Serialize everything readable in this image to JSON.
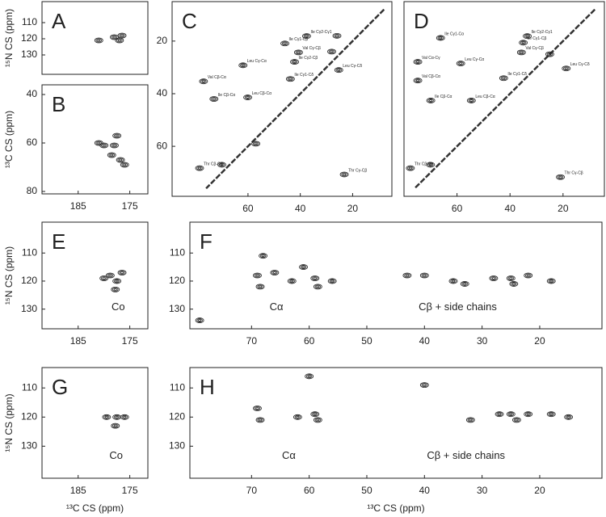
{
  "chart_data": [
    {
      "type": "contour",
      "panel": "A",
      "y_label": "¹⁵N CS (ppm)",
      "xlim": [
        192,
        171.5
      ],
      "ylim": [
        142,
        97
      ],
      "yticks": [
        110,
        120,
        130
      ],
      "peaks": {
        "x": [
          178,
          177,
          181,
          176.5
        ],
        "values": [
          119,
          121,
          121,
          118
        ],
        "labels": [
          null,
          null,
          null,
          null
        ]
      }
    },
    {
      "type": "contour",
      "panel": "B",
      "y_label": "¹³C CS (ppm)",
      "xlim": [
        192,
        171.5
      ],
      "ylim": [
        81,
        36
      ],
      "xticks": [
        185,
        175
      ],
      "yticks": [
        40,
        60,
        80
      ],
      "peaks": {
        "x": [
          177.5,
          178,
          178.5,
          176.8,
          176,
          180,
          181
        ],
        "values": [
          57,
          61,
          65,
          67,
          69,
          61,
          60
        ],
        "labels": [
          null,
          null,
          null,
          null,
          null,
          null,
          null
        ]
      }
    },
    {
      "type": "contour",
      "panel": "C",
      "xlim": [
        89,
        5
      ],
      "ylim": [
        79,
        5
      ],
      "xticks": [
        60,
        40,
        20
      ],
      "yticks": [
        20,
        40,
        60
      ],
      "diagonal": true,
      "peaks": {
        "x": [
          37.6,
          45.9,
          40.7,
          42.2,
          25.3,
          43.8,
          61.9,
          77,
          73,
          60.1,
          78.5,
          23.2,
          70,
          57,
          26,
          28
        ],
        "values": [
          18.1,
          20.9,
          24.3,
          27.9,
          31,
          34.4,
          29.2,
          35.3,
          42,
          41.4,
          68.3,
          70.7,
          67,
          59,
          18,
          24
        ],
        "labels": [
          "Ile Cγ2-Cγ1",
          "Ile Cγ1-Cβ",
          "Val Cγ-Cβ",
          "Ile Cγ2-Cβ",
          "Leu Cγ-Cδ",
          "Ile Cγ1-Cδ",
          "Leu Cγ-Cα",
          "Val Cβ-Cα",
          "Ile Cβ-Cα",
          "Leu Cβ-Cα",
          "Thr Cβ-Cα",
          "Thr Cγ-Cβ",
          null,
          null,
          null,
          null
        ]
      }
    },
    {
      "type": "contour",
      "panel": "D",
      "xlim": [
        80,
        4.4
      ],
      "ylim": [
        79,
        5
      ],
      "xticks": [
        60,
        40,
        20
      ],
      "diagonal": true,
      "peaks": {
        "x": [
          66.2,
          33.5,
          35,
          35.7,
          74.8,
          58.6,
          18.8,
          42.4,
          74.8,
          69.9,
          54.6,
          77.6,
          21,
          70,
          25
        ],
        "values": [
          18.8,
          18.1,
          20.6,
          24.3,
          27.9,
          28.5,
          30.4,
          34.1,
          35,
          42.6,
          42.6,
          68.3,
          71.7,
          67,
          25
        ],
        "labels": [
          "Ile Cγ1-Cα",
          "Ile Cγ2-Cγ1",
          "Ile Cγ1-Cβ",
          "Val Cγ-Cβ",
          "Val Cα-Cγ",
          "Leu Cγ-Cα",
          "Leu Cγ-Cδ",
          "Ile Cγ1-Cδ",
          "Val Cβ-Cα",
          "Ile Cβ-Cα",
          "Leu Cβ-Cα",
          "Thr Cβ-Cα",
          "Thr Cγ-Cβ",
          null,
          null
        ]
      }
    },
    {
      "type": "contour",
      "panel": "E",
      "y_label": "¹⁵N CS (ppm)",
      "annotations": [
        "Co"
      ],
      "xlim": [
        192,
        171.5
      ],
      "ylim": [
        137,
        99
      ],
      "xticks": [
        185,
        175
      ],
      "yticks": [
        110,
        120,
        130
      ],
      "peaks": {
        "x": [
          177.5,
          177.8,
          176.5,
          180,
          178.8
        ],
        "values": [
          120,
          123,
          117,
          119,
          118
        ],
        "labels": [
          null,
          null,
          null,
          null,
          null
        ]
      }
    },
    {
      "type": "contour",
      "panel": "F",
      "annotations": [
        "Cα",
        "Cβ + side chains"
      ],
      "xlim": [
        80.7,
        9.2
      ],
      "ylim": [
        137,
        99
      ],
      "xticks": [
        70,
        60,
        50,
        40,
        30,
        20
      ],
      "yticks": [
        110,
        120,
        130
      ],
      "peaks": {
        "x": [
          69,
          68.5,
          66,
          63,
          59,
          58.5,
          56,
          43,
          40,
          35,
          33,
          28,
          25,
          24.5,
          22,
          18,
          61,
          68,
          79
        ],
        "values": [
          118,
          122,
          117,
          120,
          119,
          122,
          120,
          118,
          118,
          120,
          121,
          119,
          119,
          121,
          118,
          120,
          115,
          111,
          134
        ],
        "labels": [
          null,
          null,
          null,
          null,
          null,
          null,
          null,
          null,
          null,
          null,
          null,
          null,
          null,
          null,
          null,
          null,
          null,
          null,
          null
        ]
      }
    },
    {
      "type": "contour",
      "panel": "G",
      "y_label": "¹⁵N CS (ppm)",
      "x_label": "¹³C CS (ppm)",
      "annotations": [
        "Co"
      ],
      "xlim": [
        192,
        171.5
      ],
      "ylim": [
        141,
        103
      ],
      "xticks": [
        185,
        175
      ],
      "yticks": [
        110,
        120,
        130
      ],
      "peaks": {
        "x": [
          177.5,
          176,
          177.8,
          179.5
        ],
        "values": [
          120,
          120,
          123,
          120
        ],
        "labels": [
          null,
          null,
          null,
          null
        ]
      }
    },
    {
      "type": "contour",
      "panel": "H",
      "x_label": "¹³C CS (ppm)",
      "annotations": [
        "Cα",
        "Cβ + side chains"
      ],
      "xlim": [
        80.7,
        9.2
      ],
      "ylim": [
        141,
        103
      ],
      "xticks": [
        70,
        60,
        50,
        40,
        30,
        20
      ],
      "yticks": [
        110,
        120,
        130
      ],
      "peaks": {
        "x": [
          69,
          68.5,
          62,
          59,
          58.5,
          40,
          32,
          27,
          25,
          24,
          22,
          18,
          15,
          60
        ],
        "values": [
          117,
          121,
          120,
          119,
          121,
          109,
          121,
          119,
          119,
          121,
          119,
          119,
          120,
          106
        ],
        "labels": [
          null,
          null,
          null,
          null,
          null,
          null,
          null,
          null,
          null,
          null,
          null,
          null,
          null,
          null
        ]
      }
    }
  ]
}
